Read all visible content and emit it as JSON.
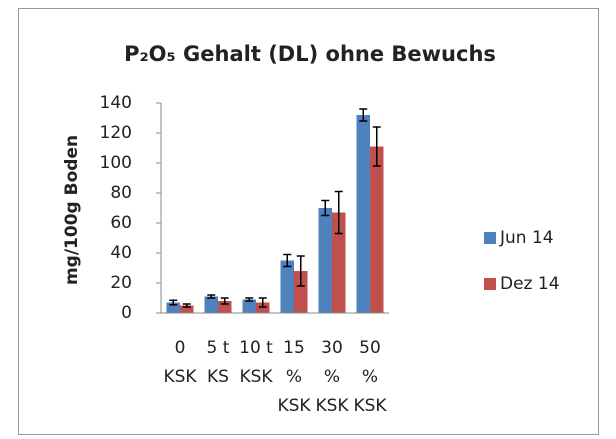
{
  "chart_data": {
    "type": "bar",
    "title": "P₂O₅ Gehalt (DL) ohne Bewuchs",
    "y_label": "mg/100g Boden",
    "categories": [
      [
        "0",
        "KSK"
      ],
      [
        "5 t",
        "KS"
      ],
      [
        "10 t",
        "KSK"
      ],
      [
        "15",
        "%",
        "KSK"
      ],
      [
        "30",
        "%",
        "KSK"
      ],
      [
        "50",
        "%",
        "KSK"
      ]
    ],
    "series": [
      {
        "name": "Jun 14",
        "color": "#4f81bd",
        "values": [
          7,
          11,
          9,
          35,
          70,
          132
        ],
        "errors": [
          1.5,
          1,
          1,
          4,
          5,
          4
        ]
      },
      {
        "name": "Dez 14",
        "color": "#c0504d",
        "values": [
          5,
          8,
          7,
          28,
          67,
          111
        ],
        "errors": [
          1,
          2,
          3,
          10,
          14,
          13
        ]
      }
    ],
    "ylim": [
      0,
      140
    ],
    "yticks": [
      0,
      20,
      40,
      60,
      80,
      100,
      120,
      140
    ],
    "legend": "right"
  }
}
